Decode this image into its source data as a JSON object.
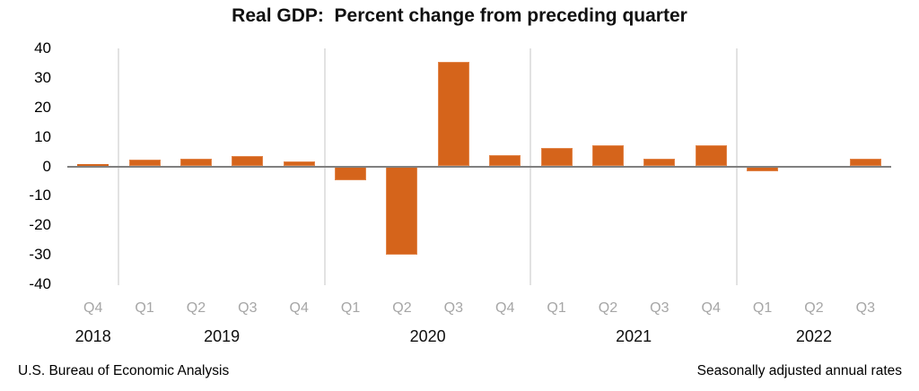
{
  "title": "Real GDP:  Percent change from preceding quarter",
  "footer": {
    "left": "U.S. Bureau of Economic Analysis",
    "right": "Seasonally adjusted annual rates"
  },
  "colors": {
    "bar": "#d5641b",
    "bar_edge": "#e2854a",
    "zero_axis": "#808080",
    "year_gridline": "#e2e2e2",
    "quarter_label": "#a6a6a6",
    "text": "#000000"
  },
  "chart_data": {
    "type": "bar",
    "title": "Real GDP:  Percent change from preceding quarter",
    "xlabel": "",
    "ylabel": "",
    "ylim": [
      -40,
      40
    ],
    "yticks": [
      40,
      30,
      20,
      10,
      0,
      -10,
      -20,
      -30,
      -40
    ],
    "grid": "vertical separators between years only; single gray zero axis line",
    "legend_position": "none",
    "categories": [
      "Q4",
      "Q1",
      "Q2",
      "Q3",
      "Q4",
      "Q1",
      "Q2",
      "Q3",
      "Q4",
      "Q1",
      "Q2",
      "Q3",
      "Q4",
      "Q1",
      "Q2",
      "Q3"
    ],
    "values": [
      0.7,
      2.2,
      2.7,
      3.6,
      1.8,
      -4.6,
      -29.9,
      35.3,
      3.9,
      6.3,
      7.0,
      2.7,
      7.0,
      -1.6,
      -0.6,
      2.6
    ],
    "year_groups": [
      {
        "year": "2018",
        "quarters": 1
      },
      {
        "year": "2019",
        "quarters": 4
      },
      {
        "year": "2020",
        "quarters": 4
      },
      {
        "year": "2021",
        "quarters": 4
      },
      {
        "year": "2022",
        "quarters": 3
      }
    ],
    "source": "U.S. Bureau of Economic Analysis",
    "note": "Seasonally adjusted annual rates"
  }
}
